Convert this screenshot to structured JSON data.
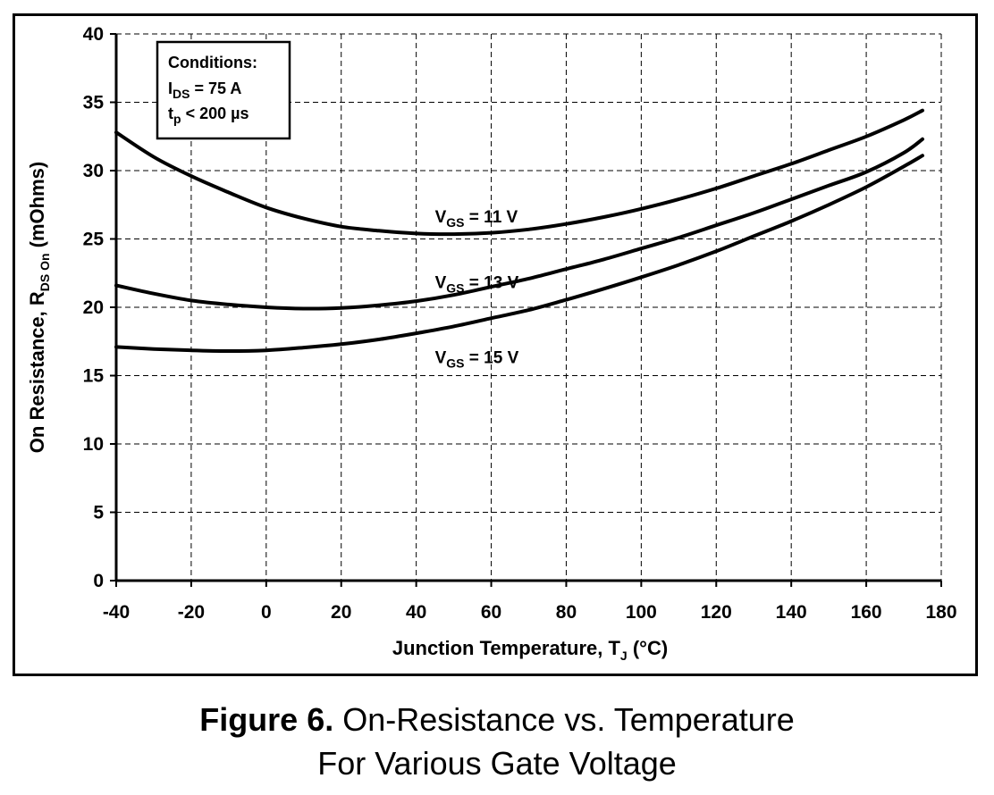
{
  "chart_data": {
    "type": "line",
    "xlabel": {
      "main": "Junction Temperature, T",
      "sub": "J",
      "suffix": " (°C)"
    },
    "ylabel": {
      "main": "On Resistance, R",
      "sub": "DS On",
      "suffix": " (mOhms)"
    },
    "xlim": [
      -40,
      180
    ],
    "ylim": [
      0,
      40
    ],
    "xticks": [
      -40,
      -20,
      0,
      20,
      40,
      60,
      80,
      100,
      120,
      140,
      160,
      180
    ],
    "yticks": [
      0,
      5,
      10,
      15,
      20,
      25,
      30,
      35,
      40
    ],
    "grid": true,
    "conditions": {
      "title": "Conditions:",
      "line1": {
        "main": "I",
        "sub": "DS",
        "rest": " = 75 A"
      },
      "line2": {
        "main": "t",
        "sub": "p",
        "rest": " < 200 µs"
      }
    },
    "series": [
      {
        "name": {
          "main": "V",
          "sub": "GS",
          "rest": " = 11 V"
        },
        "x": [
          -40,
          -30,
          -20,
          -10,
          0,
          10,
          20,
          30,
          40,
          50,
          60,
          70,
          80,
          90,
          100,
          110,
          120,
          130,
          140,
          150,
          160,
          170,
          175
        ],
        "y": [
          32.8,
          31.0,
          29.6,
          28.4,
          27.3,
          26.5,
          25.9,
          25.6,
          25.4,
          25.35,
          25.45,
          25.7,
          26.1,
          26.6,
          27.2,
          27.9,
          28.7,
          29.6,
          30.5,
          31.5,
          32.5,
          33.7,
          34.4
        ]
      },
      {
        "name": {
          "main": "V",
          "sub": "GS",
          "rest": " = 13 V"
        },
        "x": [
          -40,
          -30,
          -20,
          -10,
          0,
          10,
          20,
          30,
          40,
          50,
          60,
          70,
          80,
          90,
          100,
          110,
          120,
          130,
          140,
          150,
          160,
          170,
          175
        ],
        "y": [
          21.6,
          21.0,
          20.5,
          20.2,
          20.0,
          19.9,
          19.95,
          20.15,
          20.45,
          20.9,
          21.5,
          22.1,
          22.8,
          23.5,
          24.3,
          25.1,
          26.0,
          26.9,
          27.9,
          28.9,
          29.9,
          31.3,
          32.3
        ]
      },
      {
        "name": {
          "main": "V",
          "sub": "GS",
          "rest": " = 15 V"
        },
        "x": [
          -40,
          -30,
          -20,
          -10,
          0,
          10,
          20,
          30,
          40,
          50,
          60,
          70,
          80,
          90,
          100,
          110,
          120,
          130,
          140,
          150,
          160,
          170,
          175
        ],
        "y": [
          17.1,
          16.95,
          16.85,
          16.8,
          16.85,
          17.05,
          17.3,
          17.65,
          18.1,
          18.6,
          19.2,
          19.8,
          20.55,
          21.35,
          22.2,
          23.1,
          24.1,
          25.2,
          26.3,
          27.5,
          28.8,
          30.3,
          31.1
        ]
      }
    ],
    "series_labels_at": [
      {
        "x": 45,
        "y": 26.2
      },
      {
        "x": 45,
        "y": 21.4
      },
      {
        "x": 45,
        "y": 15.9
      }
    ]
  },
  "caption": {
    "bold": "Figure 6.",
    "line1": " On-Resistance vs. Temperature",
    "line2": "For Various Gate Voltage"
  }
}
